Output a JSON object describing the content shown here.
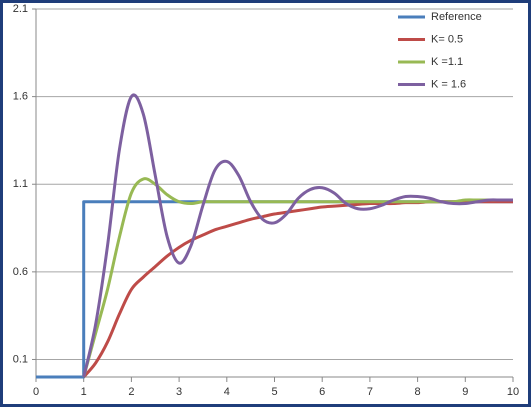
{
  "chart_data": {
    "type": "line",
    "smooth": true,
    "grid": true,
    "legend": "top-right",
    "x": [
      1,
      1.25,
      1.5,
      1.75,
      2,
      2.25,
      2.5,
      2.75,
      3,
      3.25,
      3.5,
      3.75,
      4,
      4.25,
      4.5,
      4.75,
      5,
      5.25,
      5.5,
      5.75,
      6,
      6.25,
      6.5,
      6.75,
      7,
      7.25,
      7.5,
      7.75,
      8,
      8.25,
      8.5,
      8.75,
      9,
      9.25,
      9.5,
      9.75,
      10
    ],
    "series": [
      {
        "name": "Reference",
        "color": "#4a7ebb",
        "smooth": false,
        "x": [
          0,
          1,
          1,
          10
        ],
        "values": [
          0,
          0,
          1,
          1
        ]
      },
      {
        "name": "K= 0.5",
        "color": "#be4b48",
        "values": [
          0,
          0.08,
          0.2,
          0.36,
          0.5,
          0.57,
          0.63,
          0.69,
          0.74,
          0.78,
          0.81,
          0.84,
          0.86,
          0.88,
          0.9,
          0.915,
          0.93,
          0.94,
          0.95,
          0.96,
          0.97,
          0.975,
          0.98,
          0.985,
          0.99,
          0.99,
          0.99,
          0.995,
          0.995,
          1,
          1,
          1,
          1,
          1,
          1,
          1,
          1
        ]
      },
      {
        "name": "K =1.1",
        "color": "#98b954",
        "values": [
          0,
          0.25,
          0.5,
          0.8,
          1.05,
          1.13,
          1.1,
          1.04,
          1.0,
          0.99,
          1.0,
          1.0,
          1.0,
          1.0,
          1.0,
          1.0,
          1.0,
          1.0,
          1.0,
          1.0,
          1.0,
          1.0,
          1.0,
          1.0,
          1.0,
          1.0,
          1.0,
          1.0,
          1.0,
          1.0,
          1.0,
          1.0,
          1.01,
          1.01,
          1.01,
          1.01,
          1.01
        ]
      },
      {
        "name": "K = 1.6",
        "color": "#7d60a0",
        "values": [
          0,
          0.3,
          0.75,
          1.3,
          1.6,
          1.5,
          1.15,
          0.8,
          0.65,
          0.75,
          0.98,
          1.18,
          1.23,
          1.15,
          1.0,
          0.9,
          0.88,
          0.93,
          1.02,
          1.07,
          1.08,
          1.05,
          0.99,
          0.96,
          0.96,
          0.98,
          1.01,
          1.03,
          1.03,
          1.02,
          1.0,
          0.99,
          0.99,
          1.0,
          1.01,
          1.01,
          1.01
        ]
      }
    ],
    "xlim": [
      0,
      10
    ],
    "xticks": [
      0,
      1,
      2,
      3,
      4,
      5,
      6,
      7,
      8,
      9,
      10
    ],
    "ylim": [
      0,
      2.1
    ],
    "yticks": [
      0.1,
      0.6,
      1.1,
      1.6,
      2.1
    ]
  }
}
